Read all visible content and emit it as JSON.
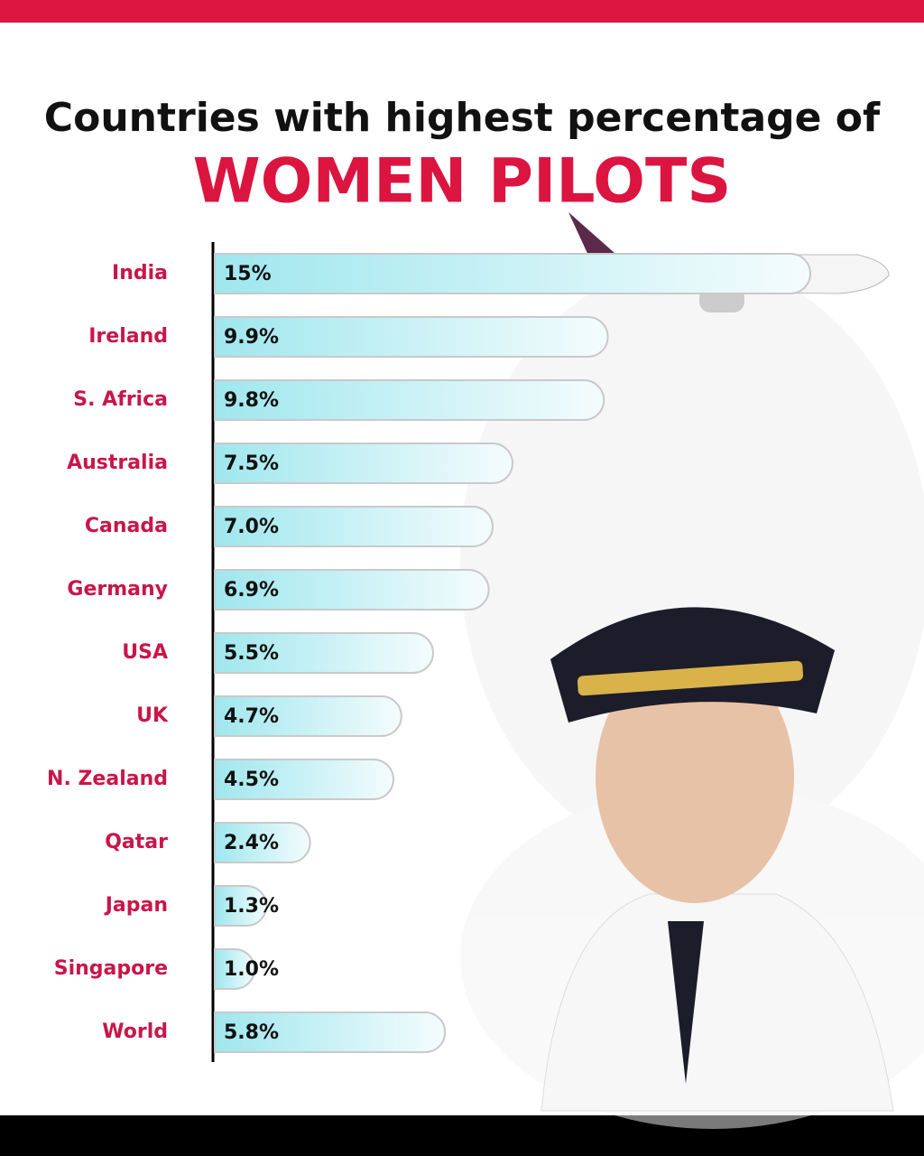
{
  "chart_data": {
    "type": "bar",
    "orientation": "horizontal",
    "title": "Countries with highest percentage of",
    "subtitle": "WOMEN PILOTS",
    "categories": [
      "India",
      "Ireland",
      "S. Africa",
      "Australia",
      "Canada",
      "Germany",
      "USA",
      "UK",
      "N. Zealand",
      "Qatar",
      "Japan",
      "Singapore",
      "World"
    ],
    "values": [
      15,
      9.9,
      9.8,
      7.5,
      7.0,
      6.9,
      5.5,
      4.7,
      4.5,
      2.4,
      1.3,
      1.0,
      5.8
    ],
    "value_labels": [
      "15%",
      "9.9%",
      "9.8%",
      "7.5%",
      "7.0%",
      "6.9%",
      "5.5%",
      "4.7%",
      "4.5%",
      "2.4%",
      "1.3%",
      "1.0%",
      "5.8%"
    ],
    "color": "#9fe7ee"
  }
}
